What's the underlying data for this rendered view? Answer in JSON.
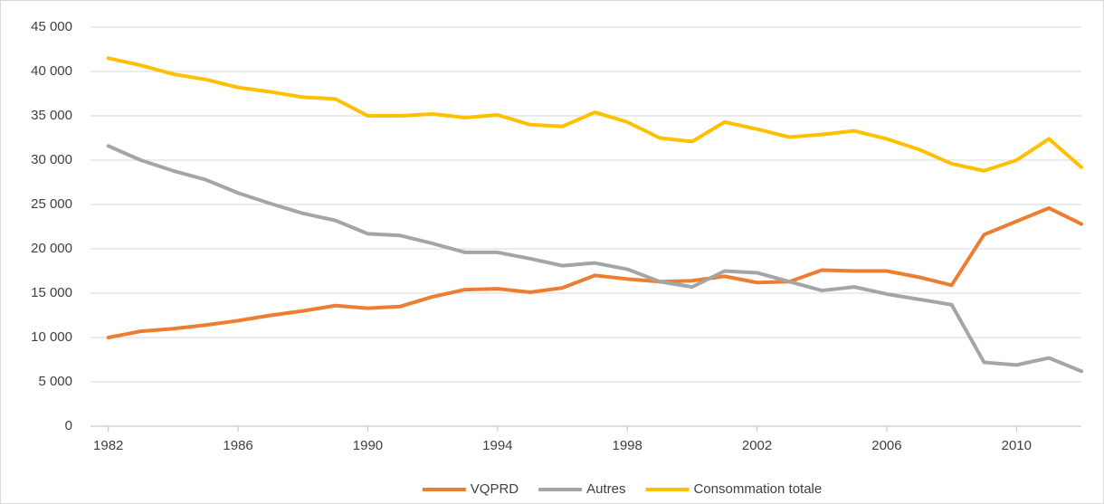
{
  "chart_data": {
    "type": "line",
    "x": [
      1982,
      1983,
      1984,
      1985,
      1986,
      1987,
      1988,
      1989,
      1990,
      1991,
      1992,
      1993,
      1994,
      1995,
      1996,
      1997,
      1998,
      1999,
      2000,
      2001,
      2002,
      2003,
      2004,
      2005,
      2006,
      2007,
      2008,
      2009,
      2010,
      2011,
      2012
    ],
    "series": [
      {
        "name": "VQPRD",
        "color": "#ed7d31",
        "values": [
          10000,
          10700,
          11000,
          11400,
          11900,
          12500,
          13000,
          13600,
          13300,
          13500,
          14600,
          15400,
          15500,
          15100,
          15600,
          17000,
          16600,
          16300,
          16400,
          16900,
          16200,
          16300,
          17600,
          17500,
          17500,
          16800,
          15900,
          21600,
          23100,
          24600,
          22800
        ]
      },
      {
        "name": "Autres",
        "color": "#a5a5a5",
        "values": [
          31600,
          30000,
          28800,
          27800,
          26300,
          25100,
          24000,
          23200,
          21700,
          21500,
          20600,
          19600,
          19600,
          18900,
          18100,
          18400,
          17700,
          16300,
          15700,
          17500,
          17300,
          16300,
          15300,
          15700,
          14900,
          14300,
          13700,
          7200,
          6900,
          7700,
          6200
        ]
      },
      {
        "name": "Consommation totale",
        "color": "#ffc000",
        "values": [
          41500,
          40700,
          39700,
          39100,
          38200,
          37700,
          37100,
          36900,
          35000,
          35000,
          35200,
          34800,
          35100,
          34000,
          33800,
          35400,
          34300,
          32500,
          32100,
          34300,
          33500,
          32600,
          32900,
          33300,
          32400,
          31200,
          29600,
          28800,
          30000,
          32400,
          29200
        ]
      }
    ],
    "xlim": [
      1981.45,
      2012
    ],
    "xticks": [
      1982,
      1986,
      1990,
      1994,
      1998,
      2002,
      2006,
      2010
    ],
    "ylim": [
      0,
      45000
    ],
    "yticks": [
      0,
      {
        "value": 5000,
        "label": "5 000"
      },
      {
        "value": 10000,
        "label": "10 000"
      },
      {
        "value": 15000,
        "label": "15 000"
      },
      {
        "value": 20000,
        "label": "20 000"
      },
      {
        "value": 25000,
        "label": "25 000"
      },
      {
        "value": 30000,
        "label": "30 000"
      },
      {
        "value": 35000,
        "label": "35 000"
      },
      {
        "value": 40000,
        "label": "40 000"
      },
      {
        "value": 45000,
        "label": "45 000"
      }
    ],
    "grid": true,
    "legend": "bottom"
  }
}
